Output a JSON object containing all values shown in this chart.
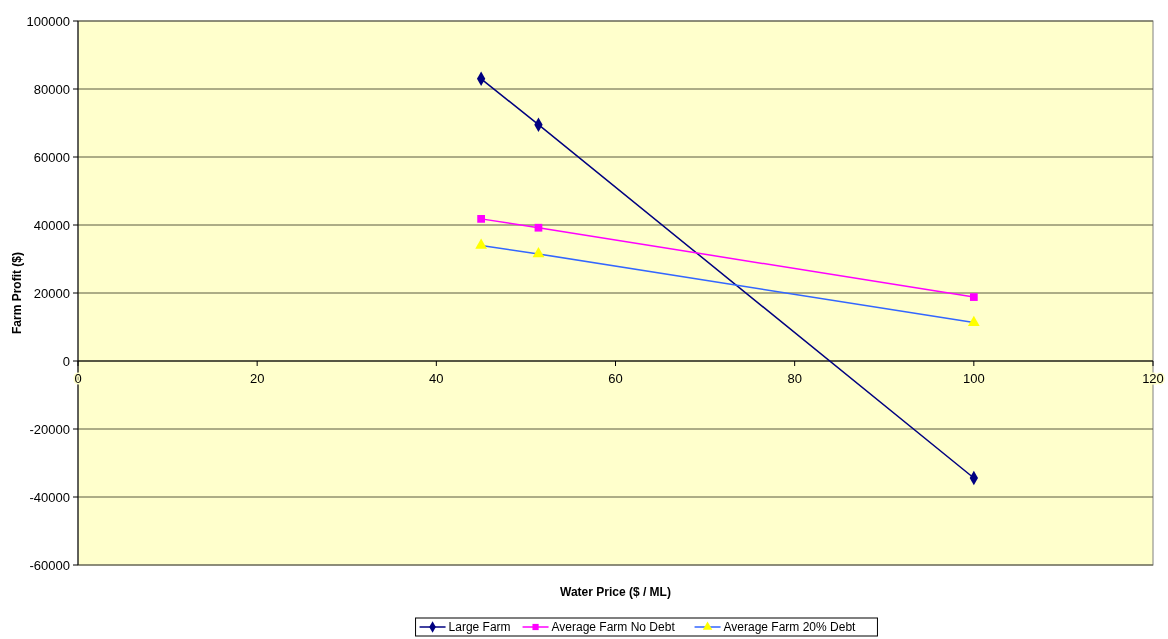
{
  "chart_data": {
    "type": "line",
    "xlabel": "Water Price ($ / ML)",
    "ylabel": "Farm Profit ($)",
    "xlim": [
      0,
      120
    ],
    "xticks": [
      0,
      20,
      40,
      60,
      80,
      100,
      120
    ],
    "ylim": [
      -60000,
      100000
    ],
    "yticks": [
      -60000,
      -40000,
      -20000,
      0,
      20000,
      40000,
      60000,
      80000,
      100000
    ],
    "grid": "y",
    "legend": "bottom",
    "series": [
      {
        "name": "Large Farm",
        "color": "#000080",
        "marker": "diamond",
        "x": [
          45,
          51.4,
          100
        ],
        "values": [
          83000,
          69500,
          -34400
        ]
      },
      {
        "name": "Average Farm No Debt",
        "color": "#ff00ff",
        "marker": "square",
        "x": [
          45,
          51.4,
          100
        ],
        "values": [
          41800,
          39200,
          18800
        ]
      },
      {
        "name": "Average Farm 20% Debt",
        "color": "#3366ff",
        "colors": [
          "#ffff00",
          "#ffff00",
          "#ffff00"
        ],
        "marker": "triangle",
        "x": [
          45,
          51.4,
          100
        ],
        "values": [
          34000,
          31500,
          11300
        ]
      }
    ]
  }
}
